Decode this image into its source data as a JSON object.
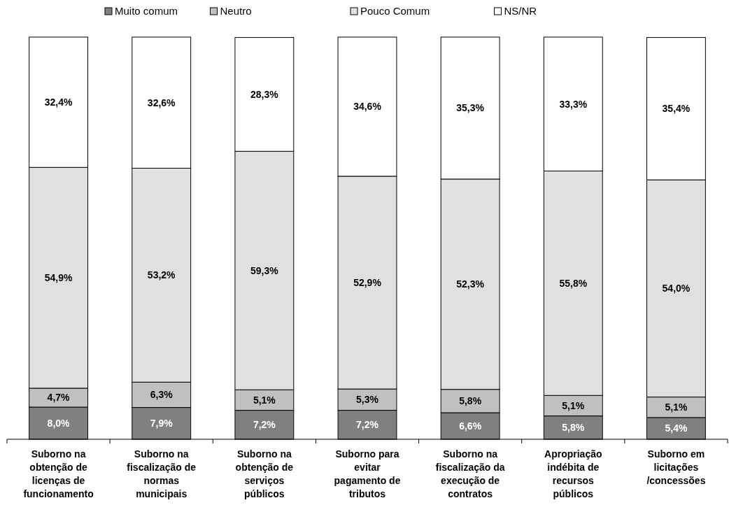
{
  "chart_data": {
    "type": "bar",
    "stacked": true,
    "data_labels": true,
    "legend": "top",
    "ylim": [
      0,
      100
    ],
    "tick_labels": "x",
    "categories": [
      "Suborno na obtenção de licenças de funcionamento",
      "Suborno na fiscalização de normas municipais",
      "Suborno na obtenção de serviços públicos",
      "Suborno para evitar pagamento de tributos",
      "Suborno na fiscalização da execução de contratos",
      "Apropriação indébita de recursos públicos",
      "Suborno em licitações /concessões"
    ],
    "series": [
      {
        "name": "Muito comum",
        "color": "#808080",
        "values": [
          8.0,
          7.9,
          7.2,
          7.2,
          6.6,
          5.8,
          5.4
        ],
        "value_labels": [
          "8,0%",
          "7,9%",
          "7,2%",
          "7,2%",
          "6,6%",
          "5,8%",
          "5,4%"
        ]
      },
      {
        "name": "Neutro",
        "color": "#c0c0c0",
        "values": [
          4.7,
          6.3,
          5.1,
          5.3,
          5.8,
          5.1,
          5.1
        ],
        "value_labels": [
          "4,7%",
          "6,3%",
          "5,1%",
          "5,3%",
          "5,8%",
          "5,1%",
          "5,1%"
        ]
      },
      {
        "name": "Pouco Comum",
        "color": "#e0e0e0",
        "values": [
          54.9,
          53.2,
          59.3,
          52.9,
          52.3,
          55.8,
          54.0
        ],
        "value_labels": [
          "54,9%",
          "53,2%",
          "59,3%",
          "52,9%",
          "52,3%",
          "55,8%",
          "54,0%"
        ]
      },
      {
        "name": "NS/NR",
        "color": "#ffffff",
        "values": [
          32.4,
          32.6,
          28.3,
          34.6,
          35.3,
          33.3,
          35.4
        ],
        "value_labels": [
          "32,4%",
          "32,6%",
          "28,3%",
          "34,6%",
          "35,3%",
          "33,3%",
          "35,4%"
        ]
      }
    ]
  }
}
